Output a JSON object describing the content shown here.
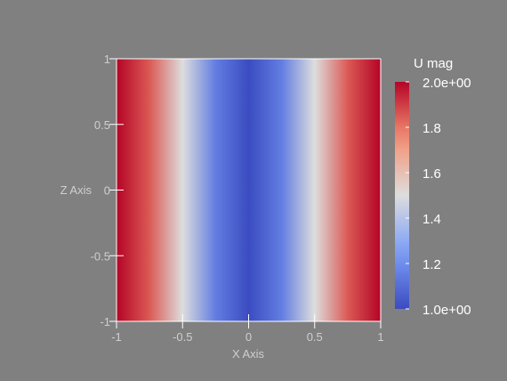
{
  "chart_data": {
    "type": "heatmap",
    "title": "",
    "xlabel": "X Axis",
    "ylabel": "Z Axis",
    "xlim": [
      -1,
      1
    ],
    "ylim": [
      -1,
      1
    ],
    "x_ticks": [
      -1,
      -0.5,
      0,
      0.5,
      1
    ],
    "x_tick_labels": [
      "-1",
      "-0.5",
      "0",
      "0.5",
      "1"
    ],
    "y_ticks": [
      -1,
      -0.5,
      0,
      0.5,
      1
    ],
    "y_tick_labels": [
      "-1",
      "-0.5",
      "0",
      "0.5",
      "1"
    ],
    "field": "U mag",
    "field_variation": "varies along X only, constant along Z",
    "x_samples": [
      -1,
      -0.75,
      -0.5,
      -0.25,
      0,
      0.25,
      0.5,
      0.75,
      1
    ],
    "values": [
      2.0,
      1.85,
      1.5,
      1.15,
      1.0,
      1.15,
      1.5,
      1.85,
      2.0
    ],
    "colorbar": {
      "title": "U mag",
      "range": [
        1.0,
        2.0
      ],
      "ticks": [
        1.0,
        1.2,
        1.4,
        1.6,
        1.8,
        2.0
      ],
      "tick_labels": [
        "1.0e+00",
        "1.2",
        "1.4",
        "1.6",
        "1.8",
        "2.0e+00"
      ],
      "colormap": "Cool to Warm",
      "placement": "right"
    },
    "grid": false,
    "colors": {
      "background": "#808080",
      "low": "#3b4cc0",
      "mid": "#dddddd",
      "high": "#b40426",
      "axis_text": "#cfcfcf",
      "colorbar_text": "#ffffff"
    }
  }
}
